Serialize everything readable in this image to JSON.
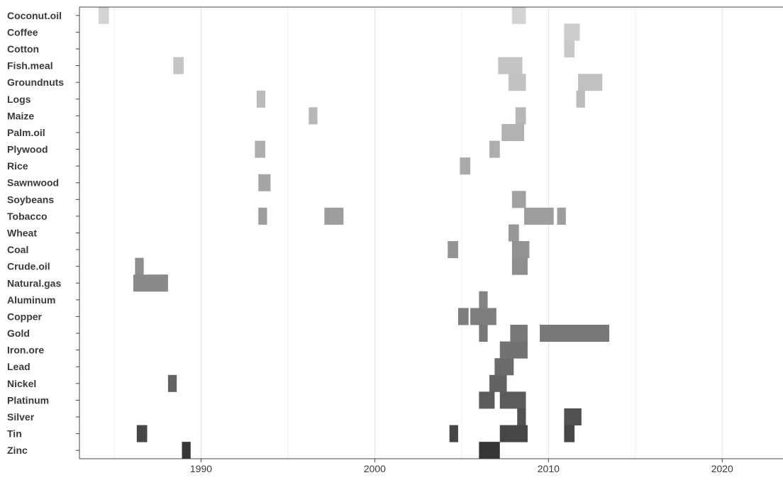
{
  "chart_data": {
    "type": "bar",
    "title": "",
    "xlabel": "",
    "ylabel": "",
    "xlim": [
      1983.0,
      2023.5
    ],
    "grid": {
      "major_x": [
        1990,
        2000,
        2010,
        2020
      ],
      "minor_x": [
        1985,
        1995,
        2005,
        2015
      ]
    },
    "x_ticks": [
      {
        "value": 1990,
        "label": "1990"
      },
      {
        "value": 2000,
        "label": "2000"
      },
      {
        "value": 2010,
        "label": "2010"
      },
      {
        "value": 2020,
        "label": "2020"
      }
    ],
    "rows": [
      {
        "name": "Coconut.oil",
        "color": "#d3d3d3",
        "intervals": [
          [
            1984.1,
            1984.7
          ],
          [
            2007.9,
            2008.7
          ]
        ]
      },
      {
        "name": "Coffee",
        "color": "#cdcdcd",
        "intervals": [
          [
            2010.9,
            2011.8
          ]
        ]
      },
      {
        "name": "Cotton",
        "color": "#c9c9c9",
        "intervals": [
          [
            2010.9,
            2011.5
          ]
        ]
      },
      {
        "name": "Fish.meal",
        "color": "#c5c5c5",
        "intervals": [
          [
            1988.4,
            1989.0
          ],
          [
            2007.1,
            2008.5
          ]
        ]
      },
      {
        "name": "Groundnuts",
        "color": "#c1c1c1",
        "intervals": [
          [
            2007.7,
            2008.7
          ],
          [
            2011.7,
            2013.1
          ]
        ]
      },
      {
        "name": "Logs",
        "color": "#bbbbbb",
        "intervals": [
          [
            1993.2,
            1993.7
          ],
          [
            2011.6,
            2012.1
          ]
        ]
      },
      {
        "name": "Maize",
        "color": "#b7b7b7",
        "intervals": [
          [
            1996.2,
            1996.7
          ],
          [
            2008.1,
            2008.7
          ]
        ]
      },
      {
        "name": "Palm.oil",
        "color": "#b2b2b2",
        "intervals": [
          [
            2007.3,
            2008.6
          ]
        ]
      },
      {
        "name": "Plywood",
        "color": "#aeaeae",
        "intervals": [
          [
            1993.1,
            1993.7
          ],
          [
            2006.6,
            2007.2
          ]
        ]
      },
      {
        "name": "Rice",
        "color": "#aaaaaa",
        "intervals": [
          [
            2004.9,
            2005.5
          ]
        ]
      },
      {
        "name": "Sawnwood",
        "color": "#a5a5a5",
        "intervals": [
          [
            1993.3,
            1994.0
          ]
        ]
      },
      {
        "name": "Soybeans",
        "color": "#a1a1a1",
        "intervals": [
          [
            2007.9,
            2008.7
          ]
        ]
      },
      {
        "name": "Tobacco",
        "color": "#9d9d9d",
        "intervals": [
          [
            1993.3,
            1993.8
          ],
          [
            1997.1,
            1998.2
          ],
          [
            2008.6,
            2010.3
          ],
          [
            2010.5,
            2011.0
          ]
        ]
      },
      {
        "name": "Wheat",
        "color": "#989898",
        "intervals": [
          [
            2007.7,
            2008.3
          ]
        ]
      },
      {
        "name": "Coal",
        "color": "#939393",
        "intervals": [
          [
            2004.2,
            2004.8
          ],
          [
            2007.9,
            2008.9
          ]
        ]
      },
      {
        "name": "Crude.oil",
        "color": "#8e8e8e",
        "intervals": [
          [
            1986.2,
            1986.7
          ],
          [
            2007.9,
            2008.8
          ]
        ]
      },
      {
        "name": "Natural.gas",
        "color": "#898989",
        "intervals": [
          [
            1986.1,
            1988.1
          ]
        ]
      },
      {
        "name": "Aluminum",
        "color": "#848484",
        "intervals": [
          [
            2006.0,
            2006.5
          ]
        ]
      },
      {
        "name": "Copper",
        "color": "#7e7e7e",
        "intervals": [
          [
            2004.8,
            2005.4
          ],
          [
            2005.5,
            2007.0
          ]
        ]
      },
      {
        "name": "Gold",
        "color": "#787878",
        "intervals": [
          [
            2006.0,
            2006.5
          ],
          [
            2007.8,
            2008.8
          ],
          [
            2009.5,
            2013.5
          ]
        ]
      },
      {
        "name": "Iron.ore",
        "color": "#727272",
        "intervals": [
          [
            2007.2,
            2008.8
          ]
        ]
      },
      {
        "name": "Lead",
        "color": "#6b6b6b",
        "intervals": [
          [
            2006.9,
            2008.0
          ]
        ]
      },
      {
        "name": "Nickel",
        "color": "#636363",
        "intervals": [
          [
            1988.1,
            1988.6
          ],
          [
            2006.6,
            2007.6
          ]
        ]
      },
      {
        "name": "Platinum",
        "color": "#5b5b5b",
        "intervals": [
          [
            2006.0,
            2006.9
          ],
          [
            2007.2,
            2008.7
          ]
        ]
      },
      {
        "name": "Silver",
        "color": "#525252",
        "intervals": [
          [
            2008.2,
            2008.7
          ],
          [
            2010.9,
            2011.9
          ]
        ]
      },
      {
        "name": "Tin",
        "color": "#464646",
        "intervals": [
          [
            1986.3,
            1986.9
          ],
          [
            2004.3,
            2004.8
          ],
          [
            2007.2,
            2008.8
          ],
          [
            2010.9,
            2011.5
          ]
        ]
      },
      {
        "name": "Zinc",
        "color": "#353535",
        "intervals": [
          [
            1988.9,
            1989.4
          ],
          [
            2006.0,
            2007.2
          ]
        ]
      }
    ]
  }
}
